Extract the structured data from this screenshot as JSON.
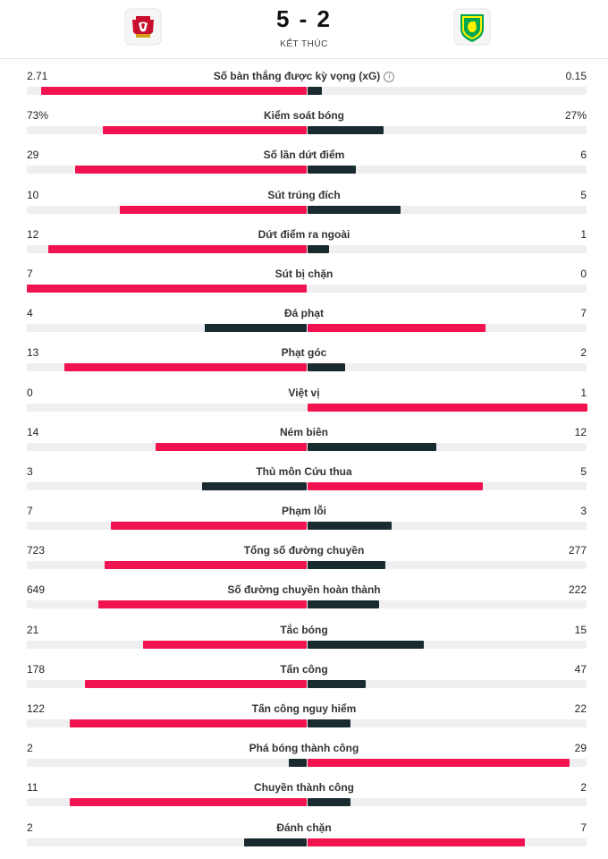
{
  "match": {
    "score": "5 - 2",
    "status": "KẾT THÚC",
    "home_badge_icon": "liverpool-crest-icon",
    "away_badge_icon": "norwich-crest-icon"
  },
  "colors": {
    "leader": "#f0134f",
    "trailer": "#1a2b2f",
    "track": "#efeff2"
  },
  "stats": [
    {
      "label": "Số bàn thắng được kỳ vọng (xG)",
      "home": "2.71",
      "away": "0.15",
      "home_n": 2.71,
      "away_n": 0.15,
      "info": "i"
    },
    {
      "label": "Kiểm soát bóng",
      "home": "73%",
      "away": "27%",
      "home_n": 73,
      "away_n": 27
    },
    {
      "label": "Số lần dứt điểm",
      "home": "29",
      "away": "6",
      "home_n": 29,
      "away_n": 6
    },
    {
      "label": "Sút trúng đích",
      "home": "10",
      "away": "5",
      "home_n": 10,
      "away_n": 5
    },
    {
      "label": "Dứt điểm ra ngoài",
      "home": "12",
      "away": "1",
      "home_n": 12,
      "away_n": 1
    },
    {
      "label": "Sút bị chặn",
      "home": "7",
      "away": "0",
      "home_n": 7,
      "away_n": 0
    },
    {
      "label": "Đá phạt",
      "home": "4",
      "away": "7",
      "home_n": 4,
      "away_n": 7
    },
    {
      "label": "Phạt góc",
      "home": "13",
      "away": "2",
      "home_n": 13,
      "away_n": 2
    },
    {
      "label": "Việt vị",
      "home": "0",
      "away": "1",
      "home_n": 0,
      "away_n": 1
    },
    {
      "label": "Ném biên",
      "home": "14",
      "away": "12",
      "home_n": 14,
      "away_n": 12
    },
    {
      "label": "Thủ môn Cứu thua",
      "home": "3",
      "away": "5",
      "home_n": 3,
      "away_n": 5
    },
    {
      "label": "Phạm lỗi",
      "home": "7",
      "away": "3",
      "home_n": 7,
      "away_n": 3
    },
    {
      "label": "Tổng số đường chuyền",
      "home": "723",
      "away": "277",
      "home_n": 723,
      "away_n": 277
    },
    {
      "label": "Số đường chuyền hoàn thành",
      "home": "649",
      "away": "222",
      "home_n": 649,
      "away_n": 222
    },
    {
      "label": "Tắc bóng",
      "home": "21",
      "away": "15",
      "home_n": 21,
      "away_n": 15
    },
    {
      "label": "Tấn công",
      "home": "178",
      "away": "47",
      "home_n": 178,
      "away_n": 47
    },
    {
      "label": "Tấn công nguy hiểm",
      "home": "122",
      "away": "22",
      "home_n": 122,
      "away_n": 22
    },
    {
      "label": "Phá bóng thành công",
      "home": "2",
      "away": "29",
      "home_n": 2,
      "away_n": 29
    },
    {
      "label": "Chuyền thành công",
      "home": "11",
      "away": "2",
      "home_n": 11,
      "away_n": 2
    },
    {
      "label": "Đánh chặn",
      "home": "2",
      "away": "7",
      "home_n": 2,
      "away_n": 7
    }
  ]
}
